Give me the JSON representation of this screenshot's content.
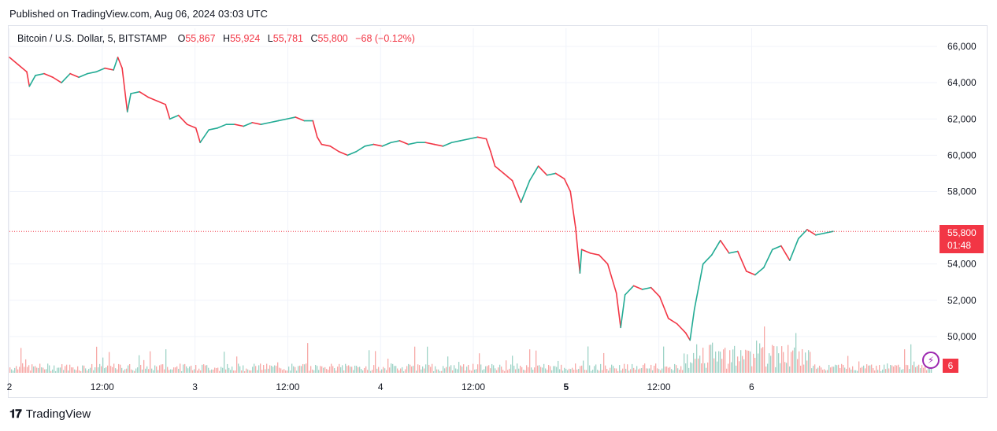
{
  "header": {
    "published": "Published on TradingView.com, Aug 06, 2024 03:03 UTC"
  },
  "legend": {
    "symbol": "Bitcoin / U.S. Dollar, 5, BITSTAMP",
    "o_label": "O",
    "o_value": "55,867",
    "h_label": "H",
    "h_value": "55,924",
    "l_label": "L",
    "l_value": "55,781",
    "c_label": "C",
    "c_value": "55,800",
    "change": "−68 (−0.12%)"
  },
  "price_tag": {
    "price": "55,800",
    "countdown": "01:48"
  },
  "volume_tag": "6",
  "footer": {
    "brand": "TradingView"
  },
  "colors": {
    "up": "#22ab94",
    "down": "#f23645",
    "grid": "#f0f3fa",
    "volume_up": "#9fd3c7",
    "volume_down": "#f7a9a7"
  },
  "chart_data": {
    "type": "line",
    "ylim": [
      48000,
      67000
    ],
    "y_ticks": [
      {
        "value": 50000,
        "label": "50,000"
      },
      {
        "value": 52000,
        "label": "52,000"
      },
      {
        "value": 54000,
        "label": "54,000"
      },
      {
        "value": 58000,
        "label": "58,000"
      },
      {
        "value": 60000,
        "label": "60,000"
      },
      {
        "value": 62000,
        "label": "62,000"
      },
      {
        "value": 64000,
        "label": "64,000"
      },
      {
        "value": 66000,
        "label": "66,000"
      }
    ],
    "x_range_hours": [
      0,
      107
    ],
    "x_ticks": [
      {
        "hour": 0,
        "label": "2",
        "bold": false
      },
      {
        "hour": 10.7,
        "label": "12:00",
        "bold": false
      },
      {
        "hour": 21.4,
        "label": "3",
        "bold": false
      },
      {
        "hour": 32.1,
        "label": "12:00",
        "bold": false
      },
      {
        "hour": 42.8,
        "label": "4",
        "bold": false
      },
      {
        "hour": 53.5,
        "label": "12:00",
        "bold": false
      },
      {
        "hour": 64.2,
        "label": "5",
        "bold": true
      },
      {
        "hour": 74.9,
        "label": "12:00",
        "bold": false
      },
      {
        "hour": 85.6,
        "label": "6",
        "bold": false
      }
    ],
    "last_price": 55800,
    "price_path": [
      [
        0,
        65400
      ],
      [
        1,
        65000
      ],
      [
        2,
        64600
      ],
      [
        2.3,
        63800
      ],
      [
        3,
        64400
      ],
      [
        4,
        64500
      ],
      [
        5,
        64300
      ],
      [
        6,
        64000
      ],
      [
        7,
        64500
      ],
      [
        8,
        64300
      ],
      [
        9,
        64500
      ],
      [
        10,
        64600
      ],
      [
        11,
        64800
      ],
      [
        12,
        64700
      ],
      [
        12.5,
        65400
      ],
      [
        13,
        64800
      ],
      [
        13.6,
        62400
      ],
      [
        14,
        63400
      ],
      [
        15,
        63500
      ],
      [
        16,
        63200
      ],
      [
        17,
        63000
      ],
      [
        18,
        62800
      ],
      [
        18.5,
        62000
      ],
      [
        19.5,
        62200
      ],
      [
        20.5,
        61700
      ],
      [
        21.5,
        61500
      ],
      [
        22,
        60700
      ],
      [
        23,
        61400
      ],
      [
        24,
        61500
      ],
      [
        25,
        61700
      ],
      [
        26,
        61700
      ],
      [
        27,
        61600
      ],
      [
        28,
        61800
      ],
      [
        29,
        61700
      ],
      [
        30,
        61800
      ],
      [
        31,
        61900
      ],
      [
        32,
        62000
      ],
      [
        33,
        62100
      ],
      [
        34,
        61900
      ],
      [
        35,
        61900
      ],
      [
        35.5,
        61000
      ],
      [
        36,
        60600
      ],
      [
        37,
        60500
      ],
      [
        38,
        60200
      ],
      [
        39,
        60000
      ],
      [
        40,
        60200
      ],
      [
        41,
        60500
      ],
      [
        42,
        60600
      ],
      [
        43,
        60500
      ],
      [
        44,
        60700
      ],
      [
        45,
        60800
      ],
      [
        46,
        60600
      ],
      [
        47,
        60700
      ],
      [
        48,
        60700
      ],
      [
        49,
        60600
      ],
      [
        50,
        60500
      ],
      [
        51,
        60700
      ],
      [
        52,
        60800
      ],
      [
        53,
        60900
      ],
      [
        54,
        61000
      ],
      [
        55,
        60900
      ],
      [
        55.5,
        60200
      ],
      [
        56,
        59400
      ],
      [
        57,
        59000
      ],
      [
        58,
        58600
      ],
      [
        59,
        57400
      ],
      [
        60,
        58600
      ],
      [
        61,
        59400
      ],
      [
        62,
        58900
      ],
      [
        63,
        59000
      ],
      [
        64,
        58700
      ],
      [
        64.7,
        58000
      ],
      [
        65.3,
        56000
      ],
      [
        65.8,
        53500
      ],
      [
        66,
        54800
      ],
      [
        67,
        54600
      ],
      [
        68,
        54500
      ],
      [
        69,
        54000
      ],
      [
        70,
        52400
      ],
      [
        70.5,
        50500
      ],
      [
        71,
        52300
      ],
      [
        72,
        52800
      ],
      [
        73,
        52600
      ],
      [
        74,
        52700
      ],
      [
        75,
        52200
      ],
      [
        76,
        51000
      ],
      [
        77,
        50700
      ],
      [
        78,
        50200
      ],
      [
        78.5,
        49800
      ],
      [
        79,
        51500
      ],
      [
        80,
        54000
      ],
      [
        81,
        54500
      ],
      [
        82,
        55300
      ],
      [
        83,
        54600
      ],
      [
        84,
        54700
      ],
      [
        85,
        53600
      ],
      [
        86,
        53400
      ],
      [
        87,
        53800
      ],
      [
        88,
        54800
      ],
      [
        89,
        55000
      ],
      [
        90,
        54200
      ],
      [
        91,
        55400
      ],
      [
        92,
        55900
      ],
      [
        93,
        55600
      ],
      [
        94,
        55700
      ],
      [
        95,
        55800
      ]
    ]
  }
}
